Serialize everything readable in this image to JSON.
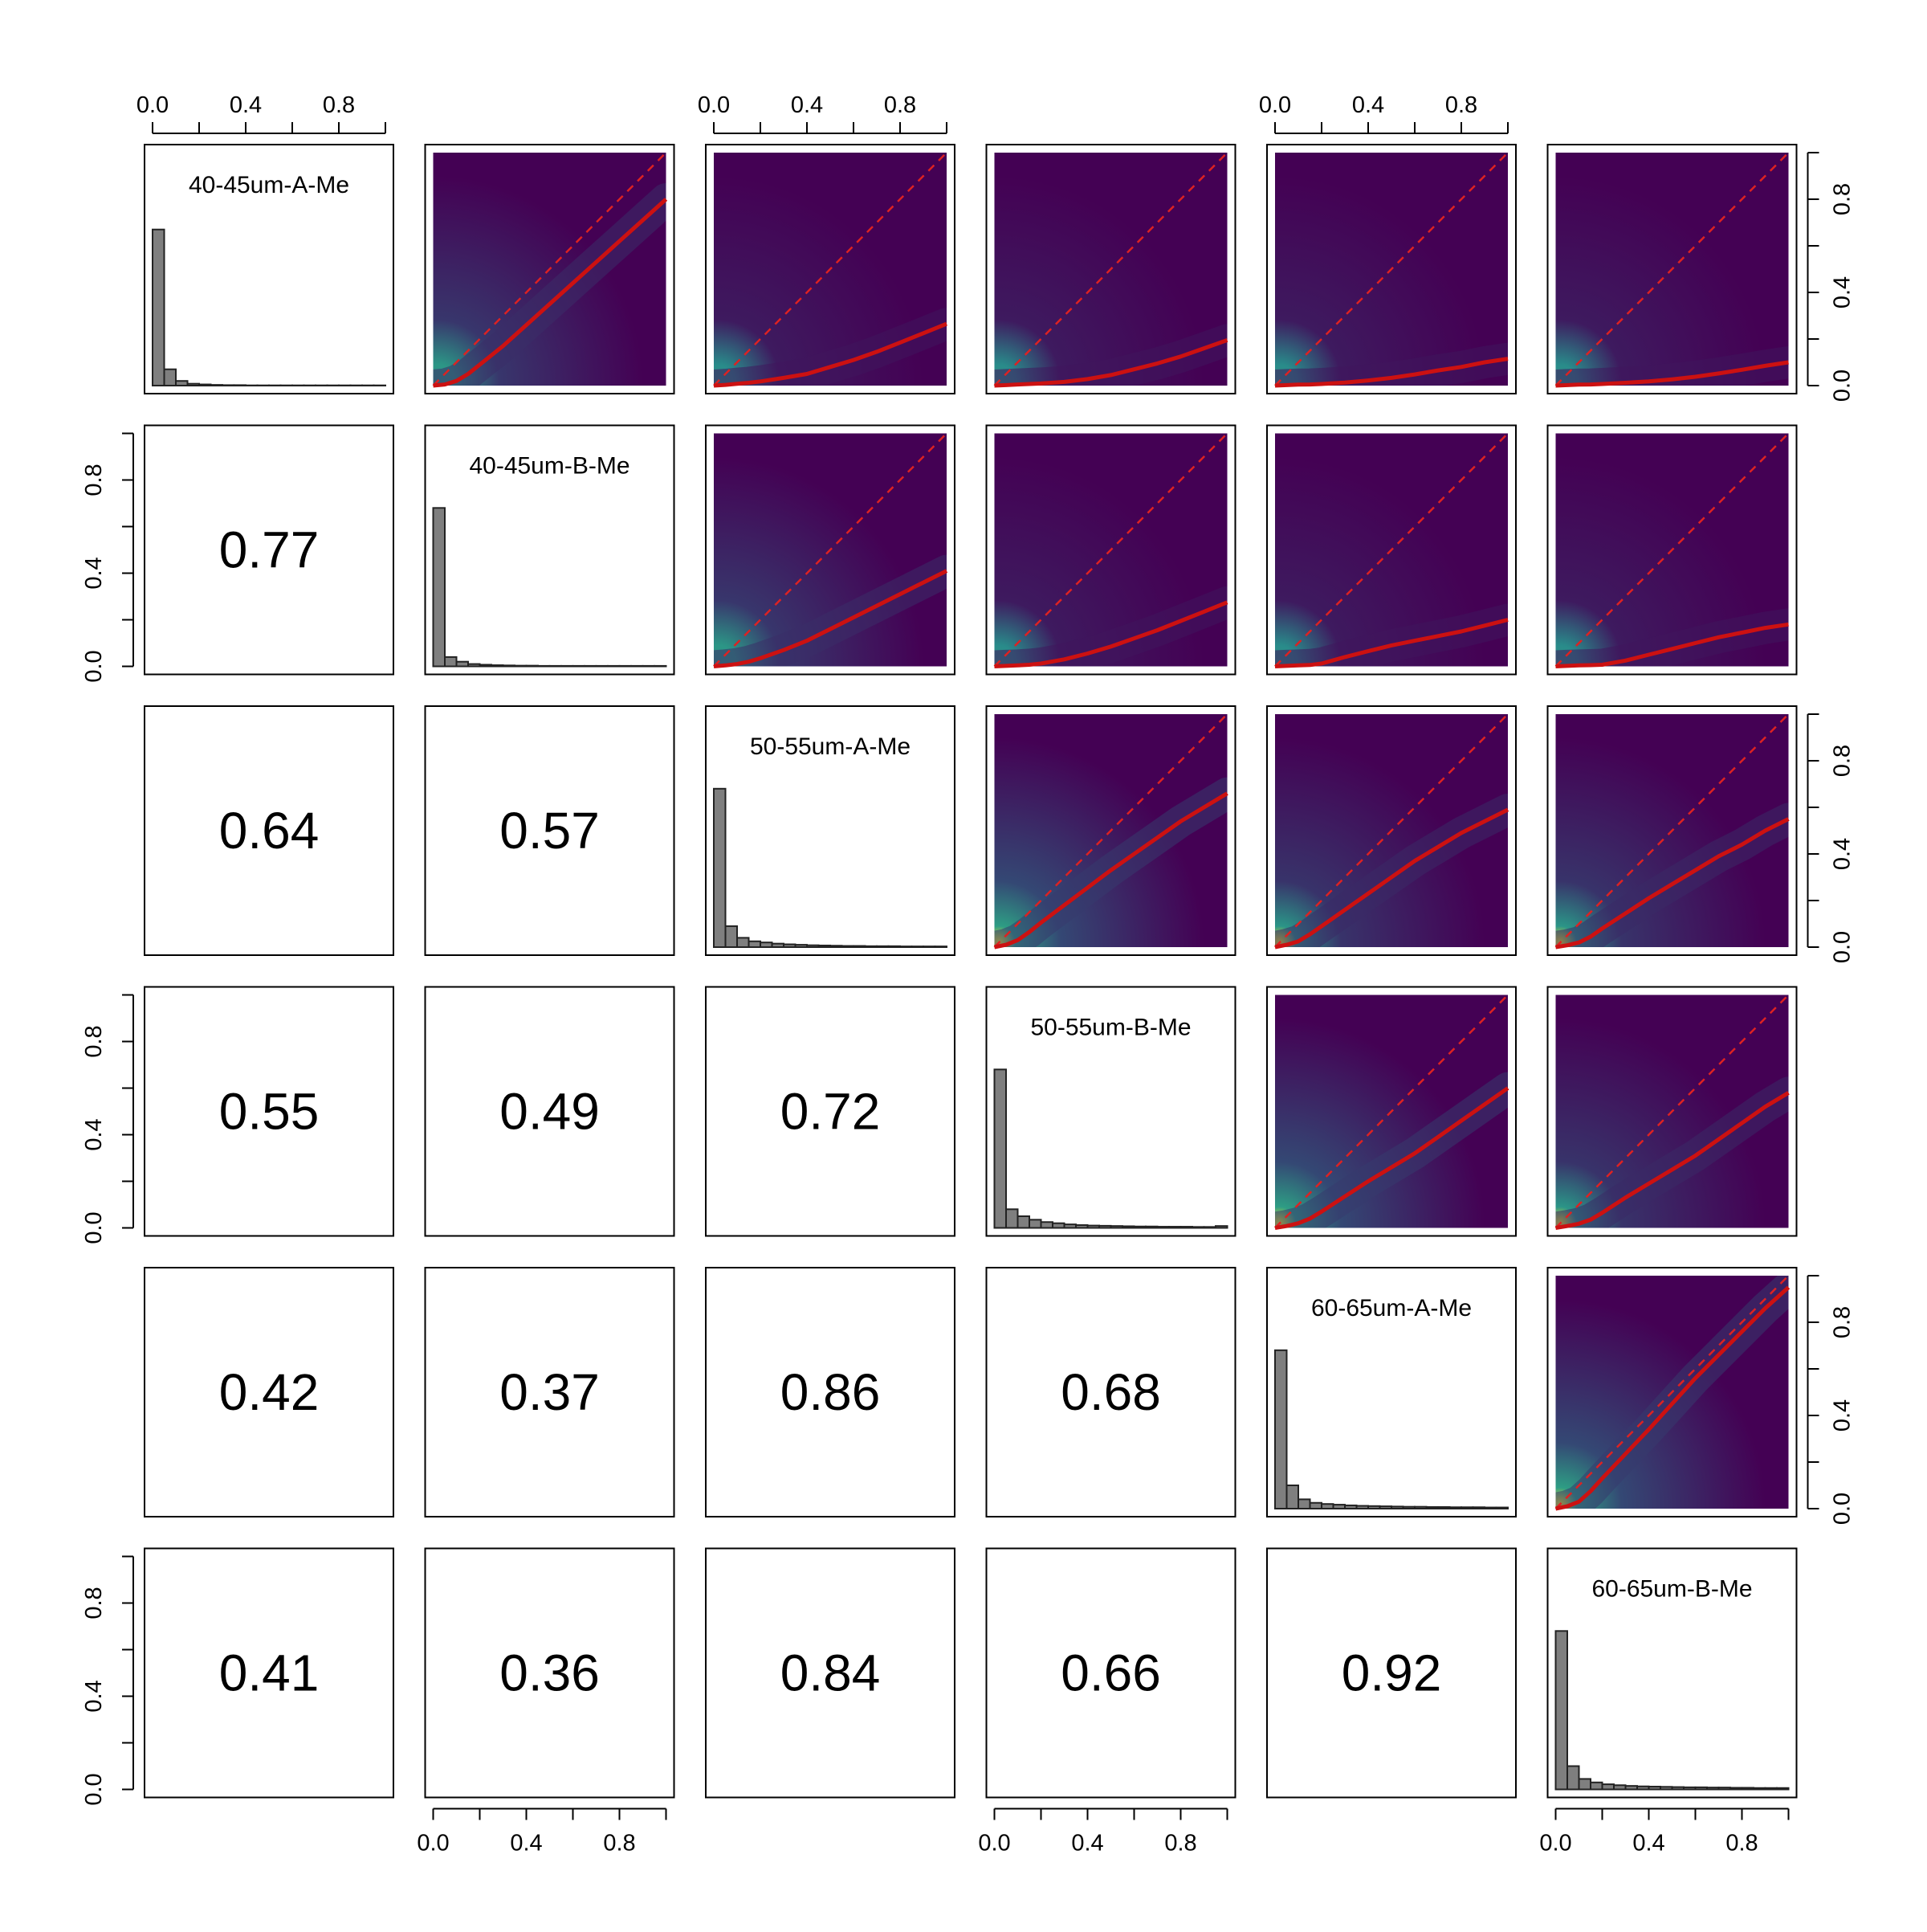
{
  "chart_data": {
    "type": "scatter",
    "subtype": "pairs-matrix",
    "description_of_panels": {
      "diagonal": "histogram",
      "upper": "density scatter with loess fit (red solid) and identity line (red dashed)",
      "lower": "correlation coefficient"
    },
    "variables": [
      "40-45um-A-Me",
      "40-45um-B-Me",
      "50-55um-A-Me",
      "50-55um-B-Me",
      "60-65um-A-Me",
      "60-65um-B-Me"
    ],
    "axis_range": [
      0,
      1
    ],
    "tick_labels": [
      "0.0",
      "0.4",
      "0.8"
    ],
    "ticks": [
      0,
      0.2,
      0.4,
      0.6,
      0.8,
      1.0
    ],
    "correlations": [
      {
        "row": 2,
        "col": 1,
        "value": "0.77"
      },
      {
        "row": 3,
        "col": 1,
        "value": "0.64"
      },
      {
        "row": 3,
        "col": 2,
        "value": "0.57"
      },
      {
        "row": 4,
        "col": 1,
        "value": "0.55"
      },
      {
        "row": 4,
        "col": 2,
        "value": "0.49"
      },
      {
        "row": 4,
        "col": 3,
        "value": "0.72"
      },
      {
        "row": 5,
        "col": 1,
        "value": "0.42"
      },
      {
        "row": 5,
        "col": 2,
        "value": "0.37"
      },
      {
        "row": 5,
        "col": 3,
        "value": "0.86"
      },
      {
        "row": 5,
        "col": 4,
        "value": "0.68"
      },
      {
        "row": 6,
        "col": 1,
        "value": "0.41"
      },
      {
        "row": 6,
        "col": 2,
        "value": "0.36"
      },
      {
        "row": 6,
        "col": 3,
        "value": "0.84"
      },
      {
        "row": 6,
        "col": 4,
        "value": "0.66"
      },
      {
        "row": 6,
        "col": 5,
        "value": "0.92"
      }
    ],
    "histogram_bins": [
      0,
      0.05,
      0.1,
      0.15,
      0.2,
      0.25,
      0.3,
      0.35,
      0.4,
      0.45,
      0.5,
      0.55,
      0.6,
      0.65,
      0.7,
      0.75,
      0.8,
      0.85,
      0.9,
      0.95,
      1.0
    ],
    "histograms": [
      {
        "variable": "40-45um-A-Me",
        "density": [
          0.67,
          0.07,
          0.02,
          0.008,
          0.005,
          0.003,
          0.002,
          0.002,
          0.001,
          0.001,
          0.001,
          0.001,
          0.001,
          0.001,
          0.001,
          0.001,
          0.001,
          0.001,
          0.001,
          0.001
        ]
      },
      {
        "variable": "40-45um-B-Me",
        "density": [
          0.68,
          0.04,
          0.02,
          0.01,
          0.007,
          0.005,
          0.004,
          0.003,
          0.003,
          0.002,
          0.002,
          0.002,
          0.002,
          0.002,
          0.002,
          0.002,
          0.002,
          0.002,
          0.002,
          0.002
        ]
      },
      {
        "variable": "50-55um-A-Me",
        "density": [
          0.68,
          0.09,
          0.04,
          0.025,
          0.02,
          0.015,
          0.012,
          0.01,
          0.008,
          0.007,
          0.006,
          0.005,
          0.005,
          0.004,
          0.004,
          0.004,
          0.003,
          0.003,
          0.003,
          0.003
        ]
      },
      {
        "variable": "50-55um-B-Me",
        "density": [
          0.68,
          0.08,
          0.05,
          0.035,
          0.025,
          0.02,
          0.015,
          0.012,
          0.01,
          0.009,
          0.008,
          0.007,
          0.006,
          0.006,
          0.005,
          0.005,
          0.005,
          0.004,
          0.004,
          0.008
        ]
      },
      {
        "variable": "60-65um-A-Me",
        "density": [
          0.68,
          0.1,
          0.04,
          0.025,
          0.02,
          0.017,
          0.014,
          0.012,
          0.011,
          0.01,
          0.009,
          0.008,
          0.008,
          0.007,
          0.007,
          0.006,
          0.006,
          0.006,
          0.005,
          0.005
        ]
      },
      {
        "variable": "60-65um-B-Me",
        "density": [
          0.68,
          0.1,
          0.045,
          0.03,
          0.022,
          0.018,
          0.015,
          0.013,
          0.012,
          0.011,
          0.01,
          0.009,
          0.009,
          0.008,
          0.008,
          0.007,
          0.007,
          0.006,
          0.006,
          0.006
        ]
      }
    ],
    "loess_x": [
      0,
      0.05,
      0.1,
      0.15,
      0.2,
      0.3,
      0.4,
      0.5,
      0.6,
      0.7,
      0.8,
      0.9,
      1.0
    ],
    "loess_fits": [
      {
        "row": 1,
        "col": 2,
        "y": [
          0,
          0.005,
          0.02,
          0.05,
          0.09,
          0.17,
          0.26,
          0.35,
          0.44,
          0.53,
          0.62,
          0.71,
          0.8
        ]
      },
      {
        "row": 1,
        "col": 3,
        "y": [
          0,
          0.003,
          0.008,
          0.012,
          0.018,
          0.033,
          0.05,
          0.08,
          0.11,
          0.145,
          0.185,
          0.225,
          0.265
        ]
      },
      {
        "row": 1,
        "col": 4,
        "y": [
          0,
          0.002,
          0.005,
          0.007,
          0.009,
          0.016,
          0.028,
          0.045,
          0.07,
          0.095,
          0.125,
          0.16,
          0.195
        ]
      },
      {
        "row": 1,
        "col": 5,
        "y": [
          0,
          0.002,
          0.004,
          0.005,
          0.007,
          0.013,
          0.022,
          0.033,
          0.048,
          0.065,
          0.08,
          0.1,
          0.115
        ]
      },
      {
        "row": 1,
        "col": 6,
        "y": [
          0,
          0.002,
          0.004,
          0.005,
          0.007,
          0.012,
          0.018,
          0.027,
          0.038,
          0.052,
          0.068,
          0.085,
          0.1
        ]
      },
      {
        "row": 2,
        "col": 3,
        "y": [
          0,
          0.004,
          0.01,
          0.02,
          0.035,
          0.07,
          0.11,
          0.16,
          0.21,
          0.26,
          0.31,
          0.36,
          0.41
        ]
      },
      {
        "row": 2,
        "col": 4,
        "y": [
          0,
          0.002,
          0.004,
          0.007,
          0.012,
          0.03,
          0.055,
          0.085,
          0.12,
          0.155,
          0.195,
          0.235,
          0.275
        ]
      },
      {
        "row": 2,
        "col": 5,
        "y": [
          0,
          0.002,
          0.004,
          0.006,
          0.012,
          0.04,
          0.065,
          0.09,
          0.11,
          0.13,
          0.15,
          0.175,
          0.2
        ]
      },
      {
        "row": 2,
        "col": 6,
        "y": [
          0,
          0.002,
          0.004,
          0.005,
          0.007,
          0.025,
          0.05,
          0.075,
          0.1,
          0.125,
          0.145,
          0.165,
          0.18
        ]
      },
      {
        "row": 3,
        "col": 4,
        "y": [
          0,
          0.01,
          0.03,
          0.065,
          0.105,
          0.18,
          0.255,
          0.33,
          0.4,
          0.47,
          0.54,
          0.6,
          0.66
        ]
      },
      {
        "row": 3,
        "col": 5,
        "y": [
          0,
          0.01,
          0.025,
          0.055,
          0.09,
          0.16,
          0.23,
          0.3,
          0.37,
          0.43,
          0.49,
          0.54,
          0.59
        ]
      },
      {
        "row": 3,
        "col": 6,
        "y": [
          0,
          0.008,
          0.02,
          0.045,
          0.08,
          0.145,
          0.21,
          0.27,
          0.33,
          0.39,
          0.44,
          0.5,
          0.55
        ]
      },
      {
        "row": 4,
        "col": 5,
        "y": [
          0,
          0.008,
          0.02,
          0.04,
          0.07,
          0.135,
          0.2,
          0.26,
          0.32,
          0.39,
          0.46,
          0.53,
          0.6
        ]
      },
      {
        "row": 4,
        "col": 6,
        "y": [
          0,
          0.008,
          0.018,
          0.035,
          0.065,
          0.13,
          0.19,
          0.25,
          0.31,
          0.38,
          0.45,
          0.52,
          0.58
        ]
      },
      {
        "row": 5,
        "col": 6,
        "y": [
          0,
          0.01,
          0.03,
          0.075,
          0.13,
          0.235,
          0.34,
          0.45,
          0.56,
          0.66,
          0.76,
          0.86,
          0.95
        ]
      }
    ],
    "colors": {
      "histogram_fill": "#7f7f7f",
      "fit_line": "#cc1111",
      "identity_line": "#dd2222",
      "density_low": "#440154",
      "density_mid": "#26828e",
      "density_high": "#fde725",
      "frame": "#000000"
    },
    "grid": false,
    "legend": "none"
  }
}
